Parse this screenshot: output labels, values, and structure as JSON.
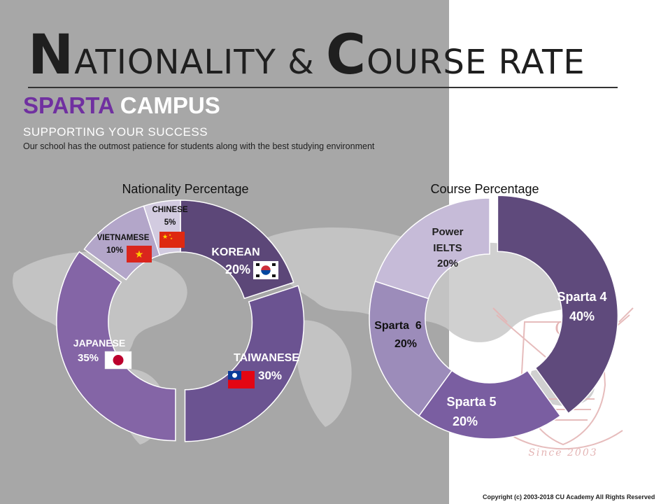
{
  "slide": {
    "title_cap1": "N",
    "title_part1": "ATIONALITY & ",
    "title_cap2": "C",
    "title_part2": "OURSE RATE",
    "campus_part1": "SPARTA",
    "campus_part2": "CAMPUS",
    "tagline": "SUPPORTING YOUR SUCCESS",
    "description": "Our school has the outmost patience for students along with the best studying environment",
    "copyright": "Copyright (c) 2003-2018 CU Academy All Rights Reserved",
    "stamp_text": "Since 2003",
    "stamp_letter": "C"
  },
  "colors": {
    "bg_left": "#a7a7a7",
    "campus_accent": "#7030a0",
    "title_text": "#1f1f1f"
  },
  "chart_data": [
    {
      "type": "pie",
      "variant": "donut",
      "title": "Nationality Percentage",
      "categories": [
        "KOREAN",
        "TAIWANESE",
        "JAPANESE",
        "VIETNAMESE",
        "CHINESE"
      ],
      "values": [
        20,
        30,
        35,
        10,
        5
      ],
      "labels": [
        "20%",
        "30%",
        "35%",
        "10%",
        "5%"
      ],
      "colors": [
        "#5c4778",
        "#6b5391",
        "#8465a6",
        "#b3a6c9",
        "#d2cbe0"
      ],
      "flags": [
        "korea-flag",
        "taiwan-flag",
        "japan-flag",
        "vietnam-flag",
        "china-flag"
      ],
      "exploded": [
        "TAIWANESE",
        "JAPANESE"
      ]
    },
    {
      "type": "pie",
      "variant": "donut",
      "title": "Course Percentage",
      "categories": [
        "Sparta 4",
        "Sparta 5",
        "Sparta  6",
        "Power IELTS"
      ],
      "label_lines": [
        [
          "Sparta 4"
        ],
        [
          "Sparta 5"
        ],
        [
          "Sparta  6"
        ],
        [
          "Power",
          "IELTS"
        ]
      ],
      "values": [
        40,
        20,
        20,
        20
      ],
      "labels": [
        "40%",
        "20%",
        "20%",
        "20%"
      ],
      "colors": [
        "#5f4a7c",
        "#7a5ea1",
        "#9c8cba",
        "#c6bbd8"
      ],
      "exploded": [
        "Sparta 4"
      ]
    }
  ]
}
